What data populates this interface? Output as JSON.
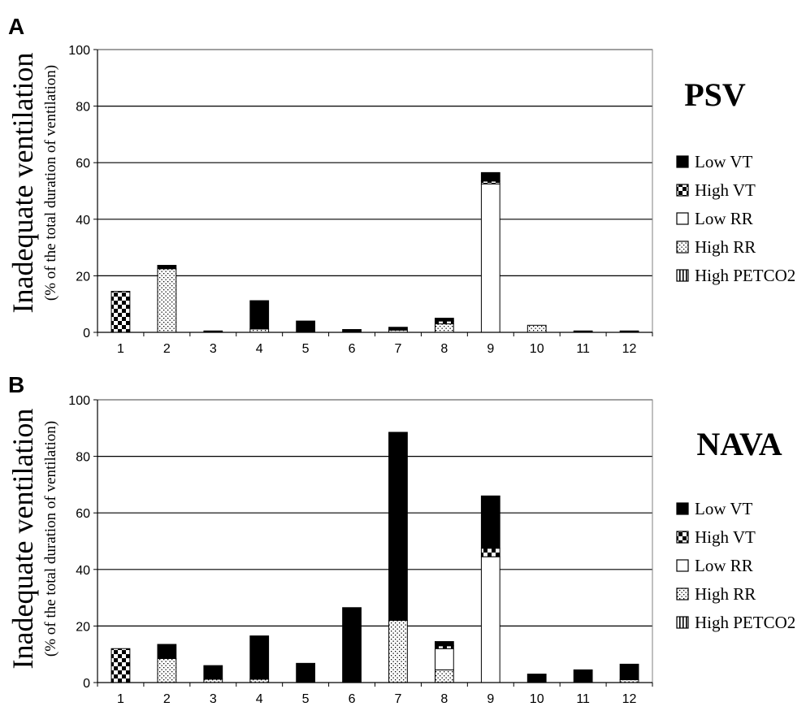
{
  "figure": {
    "ylabel": "Inadequate ventilation",
    "ylabel_sub": "(% of the total duration of ventilation)",
    "legend": [
      {
        "key": "low_vt",
        "label": "Low VT",
        "pattern": "solid"
      },
      {
        "key": "high_vt",
        "label": "High VT",
        "pattern": "checker"
      },
      {
        "key": "low_rr",
        "label": "Low RR",
        "pattern": "white"
      },
      {
        "key": "high_rr",
        "label": "High RR",
        "pattern": "dots"
      },
      {
        "key": "high_petco2",
        "label": "High PETCO2",
        "pattern": "vlines"
      }
    ],
    "colors": {
      "fill_dark": "#000000",
      "fill_light": "#ffffff",
      "grid": "#000000"
    }
  },
  "chart_data": [
    {
      "type": "bar",
      "stacked": true,
      "panel": "A",
      "title": "PSV",
      "categories": [
        "1",
        "2",
        "3",
        "4",
        "5",
        "6",
        "7",
        "8",
        "9",
        "10",
        "11",
        "12"
      ],
      "ylim": [
        0,
        100
      ],
      "yticks": [
        0,
        20,
        40,
        60,
        80,
        100
      ],
      "grid": true,
      "legend_position": "right",
      "series": [
        {
          "name": "High PETCO2",
          "key": "high_petco2",
          "values": [
            0,
            0,
            0,
            0,
            0,
            0,
            0,
            0,
            0,
            0,
            0,
            0
          ]
        },
        {
          "name": "High RR",
          "key": "high_rr",
          "values": [
            0,
            22.5,
            0,
            1.2,
            0,
            0,
            0.8,
            3.0,
            0,
            2.5,
            0,
            0
          ]
        },
        {
          "name": "Low RR",
          "key": "low_rr",
          "values": [
            0,
            0,
            0,
            0,
            0,
            0,
            0,
            0,
            52.5,
            0,
            0,
            0
          ]
        },
        {
          "name": "High VT",
          "key": "high_vt",
          "values": [
            14.5,
            0,
            0,
            0,
            0,
            0,
            0,
            1.0,
            1.0,
            0,
            0,
            0
          ]
        },
        {
          "name": "Low VT",
          "key": "low_vt",
          "values": [
            0,
            1.2,
            0.5,
            10.0,
            4.0,
            1.0,
            1.0,
            1.0,
            3.0,
            0,
            0.5,
            0.5
          ]
        }
      ]
    },
    {
      "type": "bar",
      "stacked": true,
      "panel": "B",
      "title": "NAVA",
      "categories": [
        "1",
        "2",
        "3",
        "4",
        "5",
        "6",
        "7",
        "8",
        "9",
        "10",
        "11",
        "12"
      ],
      "ylim": [
        0,
        100
      ],
      "yticks": [
        0,
        20,
        40,
        60,
        80,
        100
      ],
      "grid": true,
      "legend_position": "right",
      "series": [
        {
          "name": "High PETCO2",
          "key": "high_petco2",
          "values": [
            0,
            0,
            0,
            0,
            0,
            0,
            0,
            0,
            0,
            0,
            0,
            0
          ]
        },
        {
          "name": "High RR",
          "key": "high_rr",
          "values": [
            0,
            8.5,
            1.2,
            1.2,
            0,
            0,
            22.0,
            4.5,
            0,
            0,
            0,
            1.0
          ]
        },
        {
          "name": "Low RR",
          "key": "low_rr",
          "values": [
            0,
            0,
            0,
            0,
            0,
            0,
            0,
            7.5,
            44.5,
            0,
            0,
            0
          ]
        },
        {
          "name": "High VT",
          "key": "high_vt",
          "values": [
            12.0,
            0,
            0,
            0,
            0,
            0,
            0,
            1.0,
            3.0,
            0,
            0,
            0
          ]
        },
        {
          "name": "Low VT",
          "key": "low_vt",
          "values": [
            0,
            5.0,
            4.8,
            15.3,
            6.8,
            26.5,
            66.5,
            1.5,
            18.5,
            3.0,
            4.5,
            5.5
          ]
        }
      ]
    }
  ]
}
